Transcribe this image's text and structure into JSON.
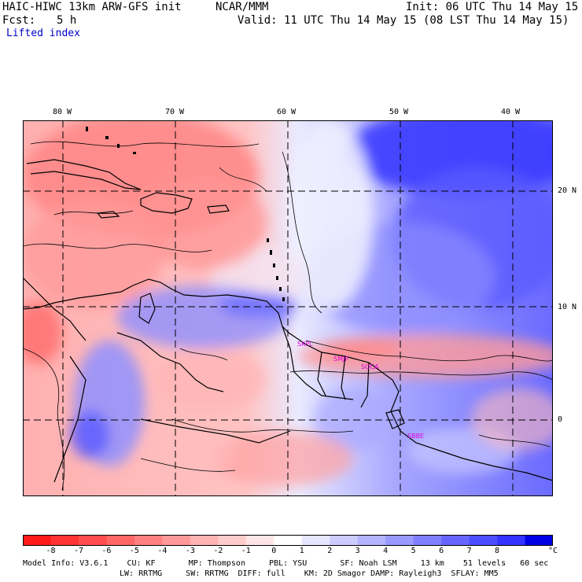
{
  "header": {
    "model_title": "HAIC-HIWC 13km ARW-GFS init",
    "org": "NCAR/MMM",
    "init": "Init: 06 UTC Thu 14 May 15",
    "fcst_label": "Fcst:",
    "fcst_value": "5 h",
    "valid": "Valid: 11 UTC Thu 14 May 15 (08 LST Thu 14 May 15)",
    "field": "Lifted index"
  },
  "axes": {
    "lon_labels": [
      "80 W",
      "70 W",
      "60 W",
      "50 W",
      "40 W"
    ],
    "lat_labels": [
      "20 N",
      "10 N",
      "0"
    ]
  },
  "stations": [
    "SKPL",
    "SMJP",
    "SOCA",
    "SBBE"
  ],
  "colorbar": {
    "labels": [
      "-8",
      "-7",
      "-6",
      "-5",
      "-4",
      "-3",
      "-2",
      "-1",
      "0",
      "1",
      "2",
      "3",
      "4",
      "5",
      "6",
      "7",
      "8"
    ],
    "unit": "°C",
    "colors": [
      "#ff1a1a",
      "#ff3333",
      "#ff4d4d",
      "#ff6666",
      "#ff8080",
      "#ff9999",
      "#ffb3b3",
      "#ffcccc",
      "#ffe6e6",
      "#ffffff",
      "#e6e6ff",
      "#ccccff",
      "#b3b3ff",
      "#9999ff",
      "#8080ff",
      "#6666ff",
      "#4d4dff",
      "#3333ff",
      "#0000e6"
    ]
  },
  "footer": {
    "line1": "Model Info: V3.6.1    CU: KF       MP: Thompson     PBL: YSU       SF: Noah LSM     13 km    51 levels   60 sec",
    "line2": "LW: RRTMG     SW: RRTMG  DIFF: full    KM: 2D Smagor DAMP: Rayleigh3  SFLAY: MM5"
  }
}
